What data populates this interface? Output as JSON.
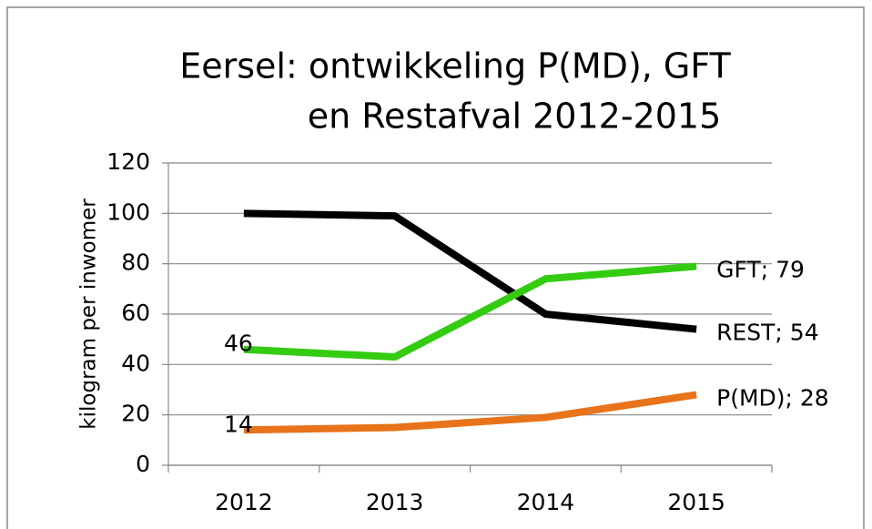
{
  "chart_data": {
    "type": "line",
    "title": [
      "Eersel: ontwikkeling P(MD), GFT",
      "en Restafval 2012-2015"
    ],
    "y_label": "kilogram per inwomer",
    "categories": [
      "2012",
      "2013",
      "2014",
      "2015"
    ],
    "series": [
      {
        "name": "REST",
        "color": "#000000",
        "values": [
          100,
          99,
          60,
          54
        ],
        "value_labels": [
          null,
          null,
          null,
          "REST; 54"
        ]
      },
      {
        "name": "GFT",
        "color": "#33cc11",
        "values": [
          46,
          43,
          74,
          79
        ],
        "value_labels": [
          "46",
          null,
          null,
          "GFT; 79"
        ]
      },
      {
        "name": "P(MD)",
        "color": "#e8731a",
        "values": [
          14,
          15,
          19,
          28
        ],
        "value_labels": [
          "14",
          null,
          null,
          "P(MD); 28"
        ]
      }
    ],
    "ylim": [
      0,
      120
    ],
    "yticks": [
      0,
      20,
      40,
      60,
      80,
      100,
      120
    ],
    "grid": true
  }
}
